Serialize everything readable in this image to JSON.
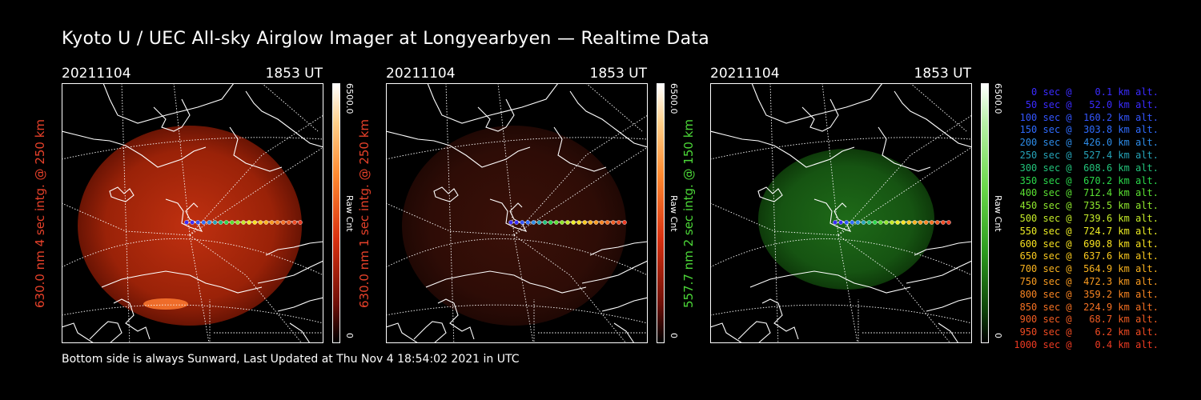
{
  "title": "Kyoto U / UEC All-sky Airglow Imager at Longyearbyen — Realtime Data",
  "footer": "Bottom side is always Sunward, Last Updated at Thu Nov  4 18:54:02 2021 in UTC",
  "panels": [
    {
      "date": "20211104",
      "time": "1853 UT",
      "ylabel": "630.0 nm 4 sec intg. @ 250 km",
      "label_color": "#e8412a",
      "cb_max": "6500.0",
      "cb_label": "Raw Cnt",
      "cb_min": "0",
      "color_scheme": "red",
      "brightness": "bright"
    },
    {
      "date": "20211104",
      "time": "1853 UT",
      "ylabel": "630.0 nm 1 sec intg. @ 250 km",
      "label_color": "#e8412a",
      "cb_max": "6500.0",
      "cb_label": "Raw Cnt",
      "cb_min": "0",
      "color_scheme": "red",
      "brightness": "dim"
    },
    {
      "date": "20211104",
      "time": "1853 UT",
      "ylabel": "557.7 nm 2 sec intg. @ 150 km",
      "label_color": "#4cd838",
      "cb_max": "6500.0",
      "cb_label": "Raw Cnt",
      "cb_min": "0",
      "color_scheme": "green",
      "brightness": "medium"
    }
  ],
  "legend": [
    {
      "text": "   0 sec @    0.1 km alt.",
      "color": "#3a2bff"
    },
    {
      "text": "  50 sec @   52.0 km alt.",
      "color": "#3a2bff"
    },
    {
      "text": " 100 sec @  160.2 km alt.",
      "color": "#3355ff"
    },
    {
      "text": " 150 sec @  303.8 km alt.",
      "color": "#2f6cff"
    },
    {
      "text": " 200 sec @  426.0 km alt.",
      "color": "#2d8ce8"
    },
    {
      "text": " 250 sec @  527.4 km alt.",
      "color": "#25a3b8"
    },
    {
      "text": " 300 sec @  608.6 km alt.",
      "color": "#22c27a"
    },
    {
      "text": " 350 sec @  670.2 km alt.",
      "color": "#2ad64a"
    },
    {
      "text": " 400 sec @  712.4 km alt.",
      "color": "#5ae032"
    },
    {
      "text": " 450 sec @  735.5 km alt.",
      "color": "#8ee62c"
    },
    {
      "text": " 500 sec @  739.6 km alt.",
      "color": "#c4ea28"
    },
    {
      "text": " 550 sec @  724.7 km alt.",
      "color": "#ecec24"
    },
    {
      "text": " 600 sec @  690.8 km alt.",
      "color": "#f6e020"
    },
    {
      "text": " 650 sec @  637.6 km alt.",
      "color": "#f8c81e"
    },
    {
      "text": " 700 sec @  564.9 km alt.",
      "color": "#f8b21e"
    },
    {
      "text": " 750 sec @  472.3 km alt.",
      "color": "#f89a20"
    },
    {
      "text": " 800 sec @  359.2 km alt.",
      "color": "#f88422"
    },
    {
      "text": " 850 sec @  224.9 km alt.",
      "color": "#f47022"
    },
    {
      "text": " 900 sec @   68.7 km alt.",
      "color": "#f05c22"
    },
    {
      "text": " 950 sec @    6.2 km alt.",
      "color": "#ee4a22"
    },
    {
      "text": "1000 sec @    0.4 km alt.",
      "color": "#ec3a22"
    }
  ],
  "track_colors": [
    "#3a2bff",
    "#3a2bff",
    "#3355ff",
    "#2f6cff",
    "#2d8ce8",
    "#25a3b8",
    "#22c27a",
    "#2ad64a",
    "#5ae032",
    "#8ee62c",
    "#c4ea28",
    "#ecec24",
    "#f6e020",
    "#f8c81e",
    "#f8b21e",
    "#f89a20",
    "#f88422",
    "#f47022",
    "#f05c22",
    "#ee4a22",
    "#ec3a22"
  ]
}
